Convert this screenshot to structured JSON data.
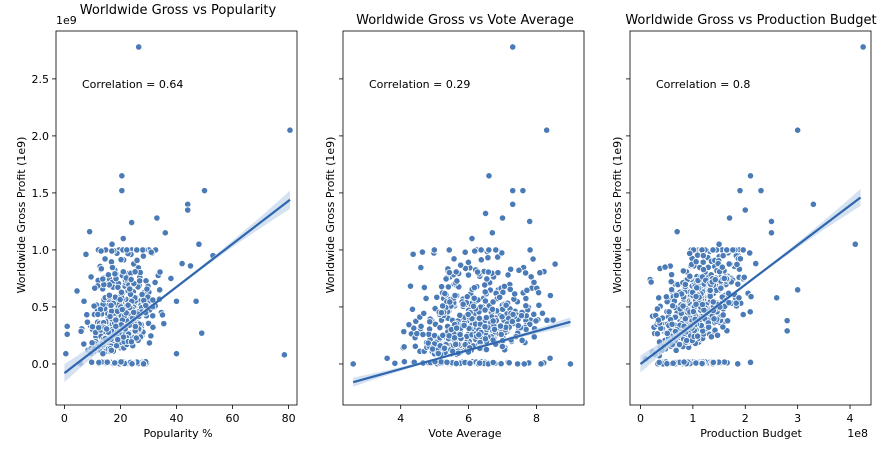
{
  "chart_data": [
    {
      "type": "scatter",
      "title": "Worldwide Gross vs Popularity",
      "xlabel": "Popularity %",
      "ylabel": "Worldwide Gross Profit (1e9)",
      "y_scale_note": "1e9",
      "annotation": "Correlation = 0.64",
      "xlim": [
        -3,
        83
      ],
      "ylim": [
        -0.36,
        2.92
      ],
      "xticks": [
        0,
        20,
        40,
        60,
        80
      ],
      "yticks": [
        0.0,
        0.5,
        1.0,
        1.5,
        2.0,
        2.5
      ],
      "xtick_labels": [
        "0",
        "20",
        "40",
        "60",
        "80"
      ],
      "ytick_labels": [
        "0.0",
        "0.5",
        "1.0",
        "1.5",
        "2.0",
        "2.5"
      ],
      "regression": {
        "x": [
          0,
          80.5
        ],
        "y": [
          -0.08,
          1.44
        ],
        "ci_width": 0.16
      },
      "highlight_points": [
        {
          "x": 26.5,
          "y": 2.78
        },
        {
          "x": 80.5,
          "y": 2.05
        },
        {
          "x": 20.5,
          "y": 1.65
        },
        {
          "x": 20.5,
          "y": 1.52
        },
        {
          "x": 50,
          "y": 1.52
        },
        {
          "x": 44,
          "y": 1.4
        },
        {
          "x": 44,
          "y": 1.35
        },
        {
          "x": 33,
          "y": 1.28
        },
        {
          "x": 36,
          "y": 1.15
        },
        {
          "x": 9,
          "y": 1.16
        },
        {
          "x": 21,
          "y": 1.1
        },
        {
          "x": 17,
          "y": 1.05
        },
        {
          "x": 48,
          "y": 1.05
        },
        {
          "x": 53,
          "y": 0.95
        },
        {
          "x": 42,
          "y": 0.88
        },
        {
          "x": 45,
          "y": 0.86
        },
        {
          "x": 38,
          "y": 0.75
        },
        {
          "x": 40,
          "y": 0.55
        },
        {
          "x": 47,
          "y": 0.55
        },
        {
          "x": 49,
          "y": 0.27
        },
        {
          "x": 78.5,
          "y": 0.08
        },
        {
          "x": 40,
          "y": 0.09
        },
        {
          "x": 4.5,
          "y": 0.64
        },
        {
          "x": 1,
          "y": 0.33
        },
        {
          "x": 1,
          "y": 0.26
        },
        {
          "x": 0.5,
          "y": 0.09
        },
        {
          "x": 7,
          "y": 0.55
        },
        {
          "x": 35,
          "y": 0.43
        },
        {
          "x": 29,
          "y": 0.45
        },
        {
          "x": 31,
          "y": 0.98
        },
        {
          "x": 34,
          "y": 0.65
        },
        {
          "x": 24,
          "y": 1.24
        }
      ],
      "cloud": {
        "seed": 11,
        "n": 560,
        "x": [
          3,
          38
        ],
        "x_mode": 20,
        "y_scale": 0.26,
        "slope": 0.012,
        "jitter": 0.4
      }
    },
    {
      "type": "scatter",
      "title": "Worldwide Gross vs Vote Average",
      "xlabel": "Vote Average",
      "ylabel": "Worldwide Gross Profit (1e9)",
      "annotation": "Correlation = 0.29",
      "xlim": [
        2.3,
        9.4
      ],
      "ylim": [
        -0.36,
        2.92
      ],
      "xticks": [
        4,
        6,
        8
      ],
      "yticks": [
        0.0,
        0.5,
        1.0,
        1.5,
        2.0,
        2.5
      ],
      "xtick_labels": [
        "4",
        "6",
        "8"
      ],
      "ytick_labels": [],
      "regression": {
        "x": [
          2.6,
          9.0
        ],
        "y": [
          -0.16,
          0.37
        ],
        "ci_width": 0.08
      },
      "highlight_points": [
        {
          "x": 7.3,
          "y": 2.78
        },
        {
          "x": 8.3,
          "y": 2.05
        },
        {
          "x": 6.6,
          "y": 1.65
        },
        {
          "x": 7.3,
          "y": 1.52
        },
        {
          "x": 7.6,
          "y": 1.52
        },
        {
          "x": 7.3,
          "y": 1.4
        },
        {
          "x": 7.0,
          "y": 1.28
        },
        {
          "x": 7.8,
          "y": 1.25
        },
        {
          "x": 6.5,
          "y": 1.32
        },
        {
          "x": 6.7,
          "y": 1.15
        },
        {
          "x": 6.1,
          "y": 1.1
        },
        {
          "x": 5.9,
          "y": 0.98
        },
        {
          "x": 7.9,
          "y": 0.92
        },
        {
          "x": 8.1,
          "y": 0.8
        },
        {
          "x": 5.6,
          "y": 0.6
        },
        {
          "x": 5.2,
          "y": 0.45
        },
        {
          "x": 4.6,
          "y": 0.33
        },
        {
          "x": 4.1,
          "y": 0.15
        },
        {
          "x": 3.6,
          "y": 0.05
        },
        {
          "x": 8.4,
          "y": 0.05
        },
        {
          "x": 9.0,
          "y": 0.0
        },
        {
          "x": 2.6,
          "y": 0.0
        }
      ],
      "cloud": {
        "seed": 23,
        "n": 560,
        "x": [
          3.0,
          8.6
        ],
        "x_mode": 6.8,
        "y_scale": 0.28,
        "slope": 0.05,
        "jitter": 0.4
      }
    },
    {
      "type": "scatter",
      "title": "Worldwide Gross vs Production Budget",
      "xlabel": "Production Budget",
      "ylabel": "Worldwide Gross Profit (1e9)",
      "x_scale_note": "1e8",
      "annotation": "Correlation = 0.8",
      "xlim": [
        -0.2,
        4.4
      ],
      "ylim": [
        -0.36,
        2.92
      ],
      "xticks": [
        0,
        1,
        2,
        3,
        4
      ],
      "yticks": [
        0.0,
        0.5,
        1.0,
        1.5,
        2.0,
        2.5
      ],
      "xtick_labels": [
        "0",
        "1",
        "2",
        "3",
        "4"
      ],
      "ytick_labels": [],
      "regression": {
        "x": [
          0,
          4.2
        ],
        "y": [
          0.0,
          1.46
        ],
        "ci_width": 0.15
      },
      "highlight_points": [
        {
          "x": 4.25,
          "y": 2.78
        },
        {
          "x": 3.0,
          "y": 2.05
        },
        {
          "x": 2.1,
          "y": 1.65
        },
        {
          "x": 1.9,
          "y": 1.52
        },
        {
          "x": 2.3,
          "y": 1.52
        },
        {
          "x": 3.3,
          "y": 1.4
        },
        {
          "x": 2.0,
          "y": 1.35
        },
        {
          "x": 1.7,
          "y": 1.28
        },
        {
          "x": 4.1,
          "y": 1.05
        },
        {
          "x": 2.5,
          "y": 1.25
        },
        {
          "x": 2.5,
          "y": 1.15
        },
        {
          "x": 0.7,
          "y": 1.16
        },
        {
          "x": 1.5,
          "y": 1.05
        },
        {
          "x": 3.0,
          "y": 0.65
        },
        {
          "x": 2.6,
          "y": 0.58
        },
        {
          "x": 2.8,
          "y": 0.38
        },
        {
          "x": 2.8,
          "y": 0.29
        },
        {
          "x": 1.6,
          "y": 0.75
        },
        {
          "x": 2.2,
          "y": 0.88
        },
        {
          "x": 1.2,
          "y": 0.95
        }
      ],
      "cloud": {
        "seed": 37,
        "n": 620,
        "x": [
          0.0,
          2.5
        ],
        "x_mode": 0.8,
        "y_scale": 0.22,
        "slope": 0.3,
        "jitter": 0.35
      }
    }
  ],
  "colors": {
    "point_fill": "#4a7bb7",
    "point_edge": "#ffffff",
    "line": "#2f66ad",
    "ci_band": "#c6d8ee"
  }
}
